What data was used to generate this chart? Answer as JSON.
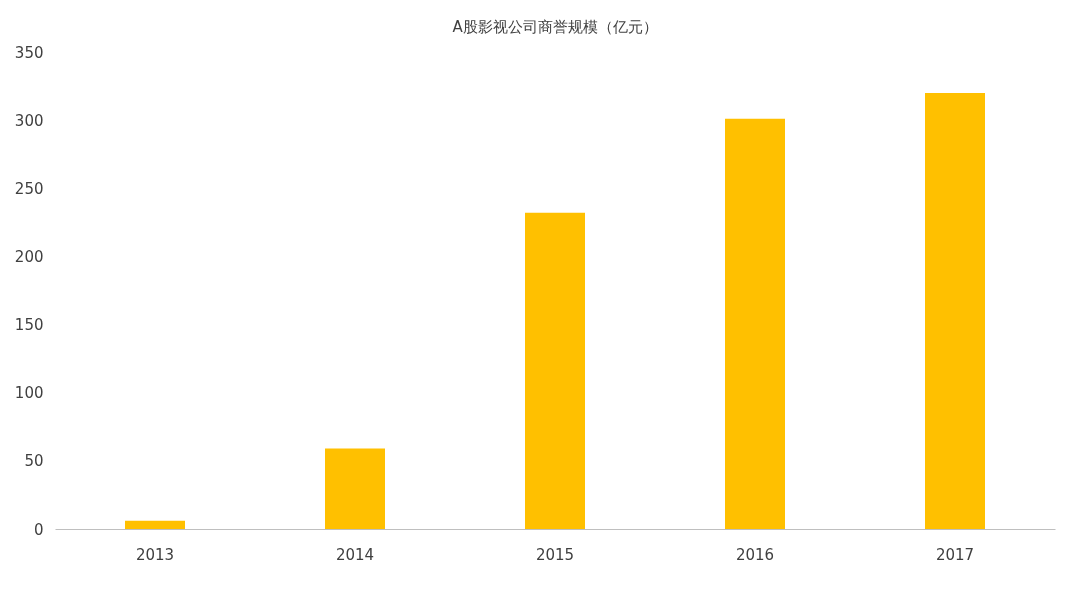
{
  "chart_data": {
    "type": "bar",
    "title": "A股影视公司商誉规模（亿元）",
    "categories": [
      "2013",
      "2014",
      "2015",
      "2016",
      "2017"
    ],
    "values": [
      6,
      59,
      232,
      301,
      320
    ],
    "color": "#ffc000",
    "ylim": [
      0,
      350
    ],
    "yticks": [
      0,
      50,
      100,
      150,
      200,
      250,
      300,
      350
    ],
    "grid": false
  }
}
